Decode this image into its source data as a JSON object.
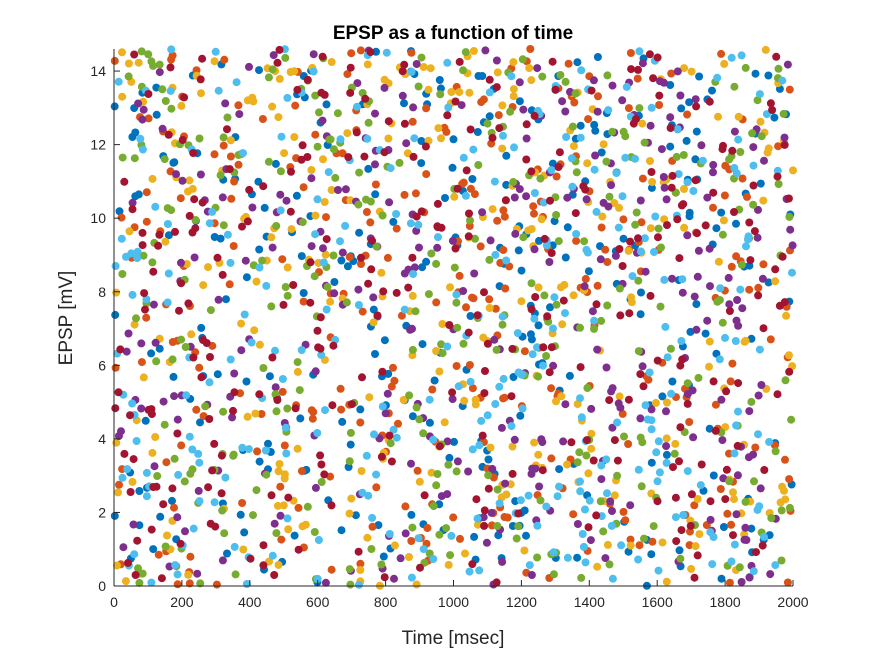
{
  "chart_data": {
    "type": "scatter",
    "title": "EPSP as a function of time",
    "xlabel": "Time [msec]",
    "ylabel": "EPSP [mV]",
    "xlim": [
      0,
      2000
    ],
    "ylim": [
      0,
      14.6
    ],
    "xticks": [
      0,
      200,
      400,
      600,
      800,
      1000,
      1200,
      1400,
      1600,
      1800,
      2000
    ],
    "yticks": [
      0,
      2,
      4,
      6,
      8,
      10,
      12,
      14
    ],
    "grid": false,
    "legend": "none",
    "point_count_per_series": 300,
    "series": [
      {
        "color": "#0072BD"
      },
      {
        "color": "#D95319"
      },
      {
        "color": "#EDB120"
      },
      {
        "color": "#7E2F8E"
      },
      {
        "color": "#77AC30"
      },
      {
        "color": "#4DBEEE"
      },
      {
        "color": "#A2142F"
      }
    ]
  }
}
